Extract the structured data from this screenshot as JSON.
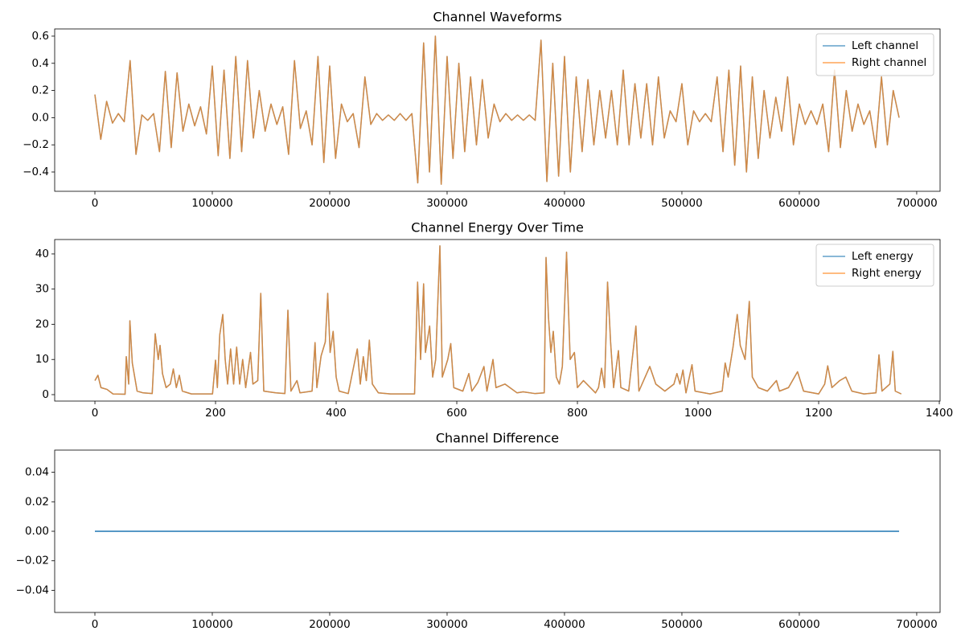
{
  "chart_data": [
    {
      "type": "line",
      "title": "Channel Waveforms",
      "legend": "upper right",
      "alpha": 0.7,
      "xlim": [
        -34250,
        719900
      ],
      "xticks": [
        0,
        100000,
        200000,
        300000,
        400000,
        500000,
        600000,
        700000
      ],
      "ylim": [
        -0.542,
        0.653
      ],
      "yticks": [
        {
          "value": -0.4,
          "label": "−0.4"
        },
        {
          "value": -0.2,
          "label": "−0.2"
        },
        {
          "value": 0,
          "label": "0.0"
        },
        0.2,
        0.4,
        0.6
      ],
      "x": [
        0,
        5000,
        10000,
        15000,
        20000,
        25000,
        30000,
        35000,
        40000,
        45000,
        50000,
        55000,
        60000,
        65000,
        70000,
        75000,
        80000,
        85000,
        90000,
        95000,
        100000,
        105000,
        110000,
        115000,
        120000,
        125000,
        130000,
        135000,
        140000,
        145000,
        150000,
        155000,
        160000,
        165000,
        170000,
        175000,
        180000,
        185000,
        190000,
        195000,
        200000,
        205000,
        210000,
        215000,
        220000,
        225000,
        230000,
        235000,
        240000,
        245000,
        250000,
        255000,
        260000,
        265000,
        270000,
        275000,
        280000,
        285000,
        290000,
        295000,
        300000,
        305000,
        310000,
        315000,
        320000,
        325000,
        330000,
        335000,
        340000,
        345000,
        350000,
        355000,
        360000,
        365000,
        370000,
        375000,
        380000,
        385000,
        390000,
        395000,
        400000,
        405000,
        410000,
        415000,
        420000,
        425000,
        430000,
        435000,
        440000,
        445000,
        450000,
        455000,
        460000,
        465000,
        470000,
        475000,
        480000,
        485000,
        490000,
        495000,
        500000,
        505000,
        510000,
        515000,
        520000,
        525000,
        530000,
        535000,
        540000,
        545000,
        550000,
        555000,
        560000,
        565000,
        570000,
        575000,
        580000,
        585000,
        590000,
        595000,
        600000,
        605000,
        610000,
        615000,
        620000,
        625000,
        630000,
        635000,
        640000,
        645000,
        650000,
        655000,
        660000,
        665000,
        670000,
        675000,
        680000,
        685000
      ],
      "series": [
        {
          "name": "Left channel",
          "color": "#1f77b4",
          "values": [
            0.17,
            -0.16,
            0.12,
            -0.04,
            0.03,
            -0.03,
            0.42,
            -0.27,
            0.02,
            -0.02,
            0.03,
            -0.25,
            0.34,
            -0.22,
            0.33,
            -0.1,
            0.1,
            -0.06,
            0.08,
            -0.12,
            0.38,
            -0.28,
            0.35,
            -0.3,
            0.45,
            -0.25,
            0.42,
            -0.15,
            0.2,
            -0.1,
            0.1,
            -0.05,
            0.08,
            -0.27,
            0.42,
            -0.08,
            0.05,
            -0.2,
            0.45,
            -0.33,
            0.38,
            -0.3,
            0.1,
            -0.03,
            0.03,
            -0.22,
            0.3,
            -0.05,
            0.03,
            -0.02,
            0.02,
            -0.02,
            0.03,
            -0.02,
            0.03,
            -0.48,
            0.55,
            -0.4,
            0.6,
            -0.49,
            0.45,
            -0.3,
            0.4,
            -0.25,
            0.3,
            -0.2,
            0.28,
            -0.15,
            0.1,
            -0.03,
            0.03,
            -0.02,
            0.02,
            -0.02,
            0.02,
            -0.02,
            0.57,
            -0.47,
            0.4,
            -0.43,
            0.45,
            -0.4,
            0.3,
            -0.25,
            0.28,
            -0.2,
            0.2,
            -0.15,
            0.2,
            -0.2,
            0.35,
            -0.2,
            0.25,
            -0.15,
            0.25,
            -0.2,
            0.3,
            -0.15,
            0.05,
            -0.03,
            0.25,
            -0.2,
            0.05,
            -0.03,
            0.03,
            -0.03,
            0.3,
            -0.25,
            0.35,
            -0.35,
            0.38,
            -0.4,
            0.3,
            -0.3,
            0.2,
            -0.15,
            0.15,
            -0.1,
            0.3,
            -0.2,
            0.1,
            -0.05,
            0.05,
            -0.05,
            0.1,
            -0.25,
            0.35,
            -0.22,
            0.2,
            -0.1,
            0.1,
            -0.05,
            0.05,
            -0.22,
            0.3,
            -0.2,
            0.2,
            0
          ]
        },
        {
          "name": "Right channel",
          "color": "#ff7f0e",
          "values": [
            0.17,
            -0.16,
            0.12,
            -0.04,
            0.03,
            -0.03,
            0.42,
            -0.27,
            0.02,
            -0.02,
            0.03,
            -0.25,
            0.34,
            -0.22,
            0.33,
            -0.1,
            0.1,
            -0.06,
            0.08,
            -0.12,
            0.38,
            -0.28,
            0.35,
            -0.3,
            0.45,
            -0.25,
            0.42,
            -0.15,
            0.2,
            -0.1,
            0.1,
            -0.05,
            0.08,
            -0.27,
            0.42,
            -0.08,
            0.05,
            -0.2,
            0.45,
            -0.33,
            0.38,
            -0.3,
            0.1,
            -0.03,
            0.03,
            -0.22,
            0.3,
            -0.05,
            0.03,
            -0.02,
            0.02,
            -0.02,
            0.03,
            -0.02,
            0.03,
            -0.48,
            0.55,
            -0.4,
            0.6,
            -0.49,
            0.45,
            -0.3,
            0.4,
            -0.25,
            0.3,
            -0.2,
            0.28,
            -0.15,
            0.1,
            -0.03,
            0.03,
            -0.02,
            0.02,
            -0.02,
            0.02,
            -0.02,
            0.57,
            -0.47,
            0.4,
            -0.43,
            0.45,
            -0.4,
            0.3,
            -0.25,
            0.28,
            -0.2,
            0.2,
            -0.15,
            0.2,
            -0.2,
            0.35,
            -0.2,
            0.25,
            -0.15,
            0.25,
            -0.2,
            0.3,
            -0.15,
            0.05,
            -0.03,
            0.25,
            -0.2,
            0.05,
            -0.03,
            0.03,
            -0.03,
            0.3,
            -0.25,
            0.35,
            -0.35,
            0.38,
            -0.4,
            0.3,
            -0.3,
            0.2,
            -0.15,
            0.15,
            -0.1,
            0.3,
            -0.2,
            0.1,
            -0.05,
            0.05,
            -0.05,
            0.1,
            -0.25,
            0.35,
            -0.22,
            0.2,
            -0.1,
            0.1,
            -0.05,
            0.05,
            -0.22,
            0.3,
            -0.2,
            0.2,
            0
          ]
        }
      ]
    },
    {
      "type": "line",
      "title": "Channel Energy Over Time",
      "legend": "upper right",
      "alpha": 0.7,
      "xlim": [
        -66.7,
        1401.3
      ],
      "xticks": [
        0,
        200,
        400,
        600,
        800,
        1000,
        1200,
        1400
      ],
      "ylim": [
        -1.83,
        44.1
      ],
      "yticks": [
        0,
        10,
        20,
        30,
        40
      ],
      "x": [
        0,
        5,
        10,
        20,
        30,
        50,
        52,
        56,
        58,
        62,
        66,
        70,
        80,
        95,
        100,
        105,
        108,
        112,
        118,
        125,
        130,
        135,
        140,
        145,
        160,
        195,
        200,
        203,
        207,
        212,
        216,
        220,
        225,
        230,
        235,
        240,
        245,
        250,
        258,
        262,
        270,
        275,
        280,
        300,
        315,
        320,
        325,
        335,
        340,
        360,
        365,
        368,
        375,
        382,
        386,
        390,
        395,
        400,
        405,
        420,
        435,
        440,
        445,
        450,
        455,
        460,
        470,
        490,
        530,
        535,
        540,
        545,
        548,
        555,
        560,
        565,
        572,
        576,
        585,
        590,
        595,
        610,
        620,
        625,
        635,
        645,
        650,
        660,
        665,
        680,
        700,
        710,
        730,
        745,
        748,
        752,
        756,
        760,
        765,
        770,
        775,
        782,
        788,
        795,
        800,
        810,
        830,
        835,
        840,
        845,
        850,
        855,
        860,
        868,
        872,
        885,
        897,
        902,
        920,
        930,
        945,
        960,
        965,
        970,
        975,
        980,
        990,
        995,
        1020,
        1040,
        1045,
        1050,
        1058,
        1065,
        1070,
        1078,
        1085,
        1090,
        1100,
        1115,
        1130,
        1135,
        1150,
        1165,
        1175,
        1200,
        1210,
        1215,
        1222,
        1235,
        1245,
        1255,
        1275,
        1295,
        1300,
        1305,
        1318,
        1323,
        1327,
        1337
      ],
      "series": [
        {
          "name": "Left energy",
          "color": "#1f77b4",
          "values": [
            4,
            5.5,
            2,
            1.5,
            0.2,
            0.1,
            10.8,
            3,
            21,
            9,
            5,
            1,
            0.5,
            0.3,
            17.3,
            10,
            14,
            6,
            2,
            3,
            7.3,
            2,
            5.5,
            1,
            0.2,
            0.2,
            9.8,
            2,
            17,
            22.8,
            10,
            3,
            13,
            3,
            13.5,
            3,
            10,
            2,
            12,
            3,
            4,
            28.8,
            1,
            0.5,
            0.3,
            24,
            1,
            4,
            0.5,
            1,
            14.8,
            2,
            11,
            15,
            28.8,
            12,
            18,
            5,
            1,
            0.3,
            13,
            3,
            10.8,
            4,
            15.5,
            3,
            0.5,
            0.2,
            0.2,
            32,
            10,
            31.5,
            12,
            19.5,
            5,
            10,
            42.3,
            5,
            10,
            14.5,
            2,
            1,
            6,
            1,
            3.5,
            8,
            1,
            10,
            2,
            3,
            0.5,
            0.8,
            0.3,
            0.5,
            39,
            22,
            12,
            18,
            5,
            3,
            8,
            40.5,
            10,
            12,
            2,
            4,
            0.5,
            2,
            7.5,
            2,
            32,
            15,
            2,
            12.5,
            2,
            1,
            19.5,
            1,
            8,
            3,
            1,
            3,
            6,
            3,
            7,
            0.5,
            8.5,
            1,
            0.2,
            1,
            9,
            5,
            13.5,
            22.8,
            14,
            10,
            26.5,
            5,
            2,
            1,
            4,
            1,
            2,
            6.5,
            1,
            0.2,
            3,
            8.2,
            2,
            4,
            5,
            1,
            0.2,
            0.5,
            11.3,
            1,
            3,
            12.3,
            1,
            0.2
          ]
        },
        {
          "name": "Right energy",
          "color": "#ff7f0e",
          "values": [
            4,
            5.5,
            2,
            1.5,
            0.2,
            0.1,
            10.8,
            3,
            21,
            9,
            5,
            1,
            0.5,
            0.3,
            17.3,
            10,
            14,
            6,
            2,
            3,
            7.3,
            2,
            5.5,
            1,
            0.2,
            0.2,
            9.8,
            2,
            17,
            22.8,
            10,
            3,
            13,
            3,
            13.5,
            3,
            10,
            2,
            12,
            3,
            4,
            28.8,
            1,
            0.5,
            0.3,
            24,
            1,
            4,
            0.5,
            1,
            14.8,
            2,
            11,
            15,
            28.8,
            12,
            18,
            5,
            1,
            0.3,
            13,
            3,
            10.8,
            4,
            15.5,
            3,
            0.5,
            0.2,
            0.2,
            32,
            10,
            31.5,
            12,
            19.5,
            5,
            10,
            42.3,
            5,
            10,
            14.5,
            2,
            1,
            6,
            1,
            3.5,
            8,
            1,
            10,
            2,
            3,
            0.5,
            0.8,
            0.3,
            0.5,
            39,
            22,
            12,
            18,
            5,
            3,
            8,
            40.5,
            10,
            12,
            2,
            4,
            0.5,
            2,
            7.5,
            2,
            32,
            15,
            2,
            12.5,
            2,
            1,
            19.5,
            1,
            8,
            3,
            1,
            3,
            6,
            3,
            7,
            0.5,
            8.5,
            1,
            0.2,
            1,
            9,
            5,
            13.5,
            22.8,
            14,
            10,
            26.5,
            5,
            2,
            1,
            4,
            1,
            2,
            6.5,
            1,
            0.2,
            3,
            8.2,
            2,
            4,
            5,
            1,
            0.2,
            0.5,
            11.3,
            1,
            3,
            12.3,
            1,
            0.2
          ]
        }
      ]
    },
    {
      "type": "line",
      "title": "Channel Difference",
      "xlim": [
        -34250,
        719900
      ],
      "xticks": [
        0,
        100000,
        200000,
        300000,
        400000,
        500000,
        600000,
        700000
      ],
      "ylim": [
        -0.055,
        0.055
      ],
      "yticks": [
        {
          "value": -0.04,
          "label": "−0.04"
        },
        {
          "value": -0.02,
          "label": "−0.02"
        },
        {
          "value": 0,
          "label": "0.00"
        },
        0.02,
        0.04
      ],
      "x": [
        0,
        685000
      ],
      "series": [
        {
          "color": "#1f77b4",
          "values": [
            0,
            0
          ]
        }
      ]
    }
  ]
}
